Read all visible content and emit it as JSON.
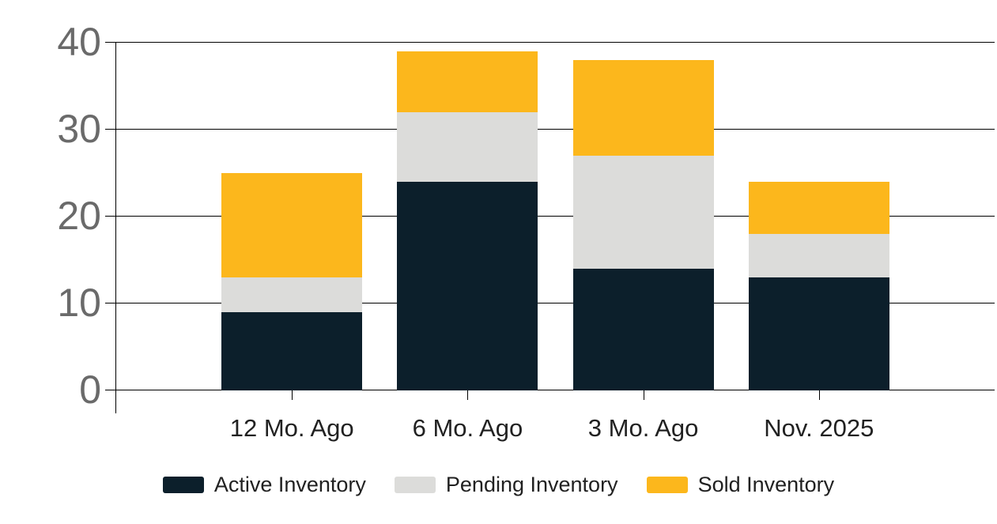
{
  "chart_data": {
    "type": "bar",
    "stacked": true,
    "title": "",
    "xlabel": "",
    "ylabel": "",
    "categories": [
      "12 Mo. Ago",
      "6 Mo. Ago",
      "3 Mo. Ago",
      "Nov. 2025"
    ],
    "series": [
      {
        "name": "Active Inventory",
        "color": "#0c1f2b",
        "values": [
          9,
          24,
          14,
          13
        ]
      },
      {
        "name": "Pending Inventory",
        "color": "#dcdcda",
        "values": [
          4,
          8,
          13,
          5
        ]
      },
      {
        "name": "Sold Inventory",
        "color": "#fcb71c",
        "values": [
          12,
          7,
          11,
          6
        ]
      }
    ],
    "totals": [
      25,
      39,
      38,
      24
    ],
    "ylim": [
      0,
      40
    ],
    "yticks": [
      0,
      10,
      20,
      30,
      40
    ],
    "grid": true,
    "legend_position": "bottom"
  },
  "colors": {
    "background": "#ffffff",
    "axis_line": "#000000",
    "y_tick_label": "#6a6a6a",
    "x_tick_label": "#212121",
    "legend_text": "#212121"
  }
}
